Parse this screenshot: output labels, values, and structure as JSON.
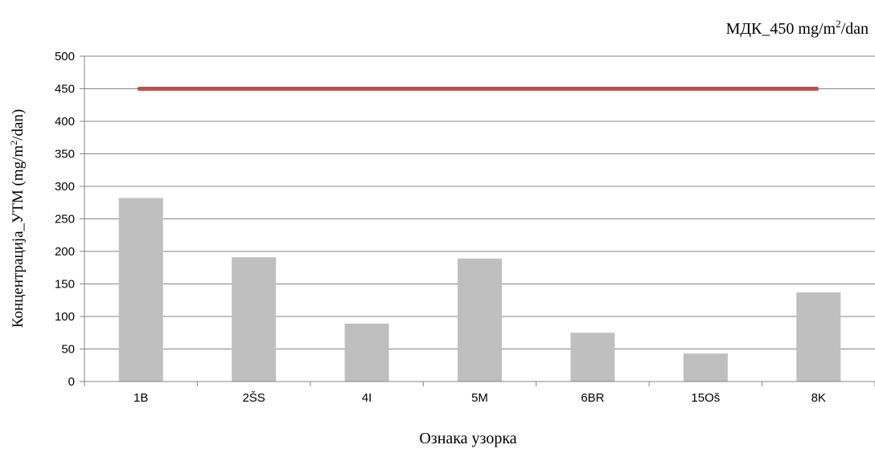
{
  "chart_data": {
    "type": "bar",
    "categories": [
      "1B",
      "2ŠS",
      "4I",
      "5M",
      "6BR",
      "15Oš",
      "8K"
    ],
    "values": [
      282,
      191,
      89,
      189,
      75,
      43,
      137
    ],
    "reference_line": {
      "value": 450,
      "color": "#c0504d"
    },
    "annotation": {
      "text": "МДК_450 mg/m",
      "sup": "2",
      "suffix": "/dan"
    },
    "xlabel": "Ознака узорка",
    "ylabel": {
      "text": "Концентрација_УТМ  (mg/m",
      "sup": "2",
      "suffix": "/dan)"
    },
    "ylim": [
      0,
      500
    ],
    "yticks": [
      0,
      50,
      100,
      150,
      200,
      250,
      300,
      350,
      400,
      450,
      500
    ],
    "grid": true,
    "bar_color": "#bfbfbf"
  }
}
